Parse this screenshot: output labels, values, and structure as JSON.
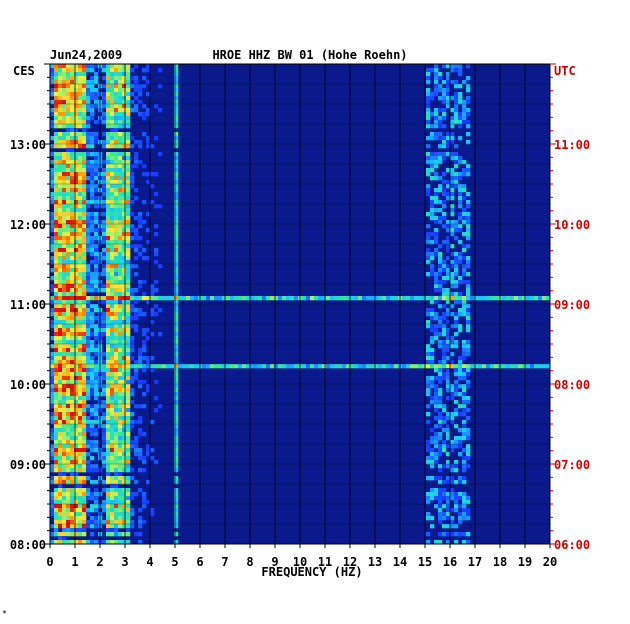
{
  "chart_data": {
    "type": "heatmap",
    "date": "Jun24,2009",
    "title": "HROE HHZ BW 01 (Hohe Roehn)",
    "xlabel": "FREQUENCY (HZ)",
    "left_axis_label": "CES",
    "right_axis_label": "UTC",
    "xlim": [
      0,
      20
    ],
    "x_ticks": [
      "0",
      "1",
      "2",
      "3",
      "4",
      "5",
      "6",
      "7",
      "8",
      "9",
      "10",
      "11",
      "12",
      "13",
      "14",
      "15",
      "16",
      "17",
      "18",
      "19",
      "20"
    ],
    "time_range_local": [
      "08:00",
      "14:00"
    ],
    "y_ticks_left": [
      "08:00",
      "09:00",
      "10:00",
      "11:00",
      "12:00",
      "13:00"
    ],
    "y_ticks_right": [
      "06:00",
      "07:00",
      "08:00",
      "09:00",
      "10:00",
      "11:00"
    ],
    "left_tick_color": "#000000",
    "right_tick_color": "#cc0000",
    "colormap": [
      "#0a1a8c",
      "#1a3cff",
      "#19c8ff",
      "#2ee8a0",
      "#f0f040",
      "#ff8a00",
      "#e01010"
    ],
    "energy_bands_hz": [
      [
        0.2,
        1.5
      ],
      [
        2.3,
        3.2
      ],
      [
        15.0,
        16.8
      ]
    ],
    "broadband_events_local": [
      "11:04",
      "10:13"
    ],
    "grid": true
  },
  "footer_mark": "*"
}
